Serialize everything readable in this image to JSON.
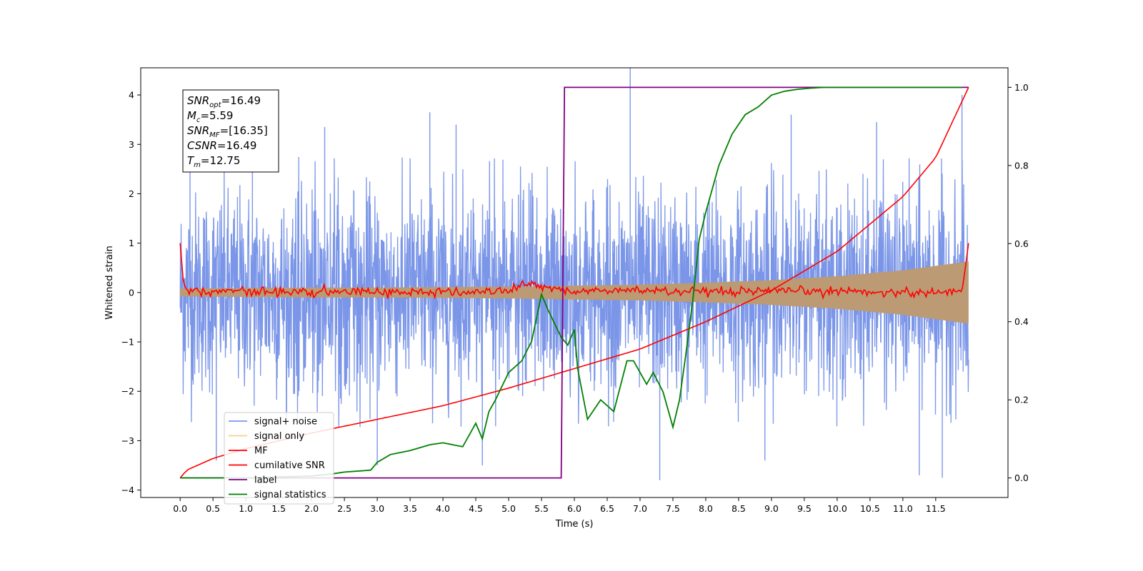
{
  "chart_data": {
    "type": "line",
    "title": "",
    "xlabel": "Time (s)",
    "ylabel": "Whitened strain",
    "y2label": "",
    "xlim": [
      -0.6,
      12.6
    ],
    "ylim": [
      -4.15,
      4.55
    ],
    "y2lim": [
      -0.05,
      1.05
    ],
    "x_ticks": [
      "0.0",
      "0.5",
      "1.0",
      "1.5",
      "2.0",
      "2.5",
      "3.0",
      "3.5",
      "4.0",
      "4.5",
      "5.0",
      "5.5",
      "6.0",
      "6.5",
      "7.0",
      "7.5",
      "8.0",
      "8.5",
      "9.0",
      "9.5",
      "10.0",
      "10.5",
      "11.0",
      "11.5"
    ],
    "x_tick_values": [
      0,
      0.5,
      1,
      1.5,
      2,
      2.5,
      3,
      3.5,
      4,
      4.5,
      5,
      5.5,
      6,
      6.5,
      7,
      7.5,
      8,
      8.5,
      9,
      9.5,
      10,
      10.5,
      11,
      11.5
    ],
    "y_ticks": [
      "−4",
      "−3",
      "−2",
      "−1",
      "0",
      "1",
      "2",
      "3",
      "4"
    ],
    "y_tick_values": [
      -4,
      -3,
      -2,
      -1,
      0,
      1,
      2,
      3,
      4
    ],
    "y2_ticks": [
      "0.0",
      "0.2",
      "0.4",
      "0.6",
      "0.8",
      "1.0"
    ],
    "y2_tick_values": [
      0,
      0.2,
      0.4,
      0.6,
      0.8,
      1.0
    ],
    "grid": false,
    "legend_position": "lower-left",
    "colors": {
      "signal_noise": "#7b96e8",
      "signal_only": "#f5b041",
      "signal_overlap": "#bb9a74",
      "mf": "#ff0000",
      "csnr": "#ff0000",
      "label": "#800080",
      "statistics": "#008000"
    },
    "info_box": [
      "SNR_opt=16.49",
      "M_c=5.59",
      "SNR_MF=[16.35]",
      "CSNR=16.49",
      "T_m=12.75"
    ],
    "info": {
      "snr_opt": "=16.49",
      "mc": "=5.59",
      "snr_mf": "=[16.35]",
      "csnr": "=16.49",
      "tm": "=12.75"
    },
    "series": [
      {
        "name": "signal+ noise",
        "axis": "left",
        "note_style": "dense noise band",
        "x_range": [
          0,
          12.0
        ],
        "typical_envelope": [
          -2.5,
          2.6
        ],
        "peaks_high": [
          [
            0.15,
            3.6
          ],
          [
            1.1,
            3.3
          ],
          [
            2.2,
            3.35
          ],
          [
            3.8,
            3.65
          ],
          [
            4.2,
            3.4
          ],
          [
            6.85,
            4.6
          ],
          [
            9.3,
            3.6
          ],
          [
            10.6,
            3.45
          ],
          [
            11.9,
            4.0
          ]
        ],
        "peaks_low": [
          [
            0.55,
            -3.4
          ],
          [
            3.0,
            -3.5
          ],
          [
            4.6,
            -3.5
          ],
          [
            7.3,
            -3.8
          ],
          [
            8.9,
            -3.4
          ],
          [
            11.25,
            -3.7
          ],
          [
            11.6,
            -3.75
          ]
        ]
      },
      {
        "name": "signal only",
        "axis": "left",
        "x": [
          0,
          1,
          2,
          3,
          4,
          5,
          6,
          7,
          8,
          9,
          10,
          11,
          12
        ],
        "amplitude": [
          0.08,
          0.09,
          0.1,
          0.1,
          0.11,
          0.12,
          0.14,
          0.16,
          0.2,
          0.25,
          0.33,
          0.45,
          0.63
        ]
      },
      {
        "name": "MF",
        "axis": "left",
        "x": [
          0,
          0.05,
          0.1,
          0.3,
          1,
          2,
          3,
          4,
          5,
          5.2,
          6,
          7,
          8,
          9,
          10,
          11,
          11.9,
          11.95,
          12.0
        ],
        "y": [
          1.0,
          0.2,
          0.05,
          0.02,
          0.03,
          0.0,
          0.02,
          0.0,
          0.03,
          0.18,
          0.02,
          0.05,
          0.0,
          0.02,
          0.03,
          0.0,
          0.02,
          0.5,
          1.0
        ]
      },
      {
        "name": "cumilative SNR",
        "axis": "right",
        "x": [
          0,
          0.1,
          0.5,
          1,
          2,
          3,
          4,
          5,
          6,
          7,
          8,
          9,
          10,
          11,
          11.5,
          12.0
        ],
        "y": [
          0.0,
          0.02,
          0.05,
          0.075,
          0.115,
          0.15,
          0.185,
          0.23,
          0.28,
          0.33,
          0.4,
          0.48,
          0.58,
          0.72,
          0.82,
          1.0
        ]
      },
      {
        "name": "label",
        "axis": "right",
        "x": [
          0,
          5.8,
          5.85,
          12.0
        ],
        "y": [
          0,
          0,
          1,
          1
        ]
      },
      {
        "name": "signal statistics",
        "axis": "right",
        "x": [
          0,
          1,
          2,
          2.3,
          2.5,
          2.9,
          3.0,
          3.2,
          3.5,
          3.8,
          4.0,
          4.3,
          4.5,
          4.6,
          4.7,
          4.8,
          5.0,
          5.2,
          5.35,
          5.5,
          5.6,
          5.8,
          5.9,
          6.0,
          6.05,
          6.2,
          6.4,
          6.6,
          6.8,
          6.9,
          7.0,
          7.1,
          7.2,
          7.35,
          7.5,
          7.6,
          7.7,
          7.8,
          7.9,
          8.0,
          8.2,
          8.4,
          8.6,
          8.8,
          9.0,
          9.2,
          9.4,
          9.6,
          9.8,
          10.0,
          10.5,
          11.0,
          11.9
        ],
        "y": [
          0.0,
          0.0,
          0.005,
          0.01,
          0.015,
          0.02,
          0.04,
          0.06,
          0.07,
          0.085,
          0.09,
          0.08,
          0.14,
          0.1,
          0.17,
          0.2,
          0.27,
          0.3,
          0.35,
          0.47,
          0.43,
          0.36,
          0.34,
          0.38,
          0.28,
          0.15,
          0.2,
          0.17,
          0.3,
          0.3,
          0.27,
          0.24,
          0.27,
          0.22,
          0.13,
          0.2,
          0.32,
          0.45,
          0.61,
          0.68,
          0.8,
          0.88,
          0.93,
          0.95,
          0.98,
          0.99,
          0.995,
          0.998,
          1.0,
          1.0,
          1.0,
          1.0,
          1.0
        ]
      }
    ]
  }
}
